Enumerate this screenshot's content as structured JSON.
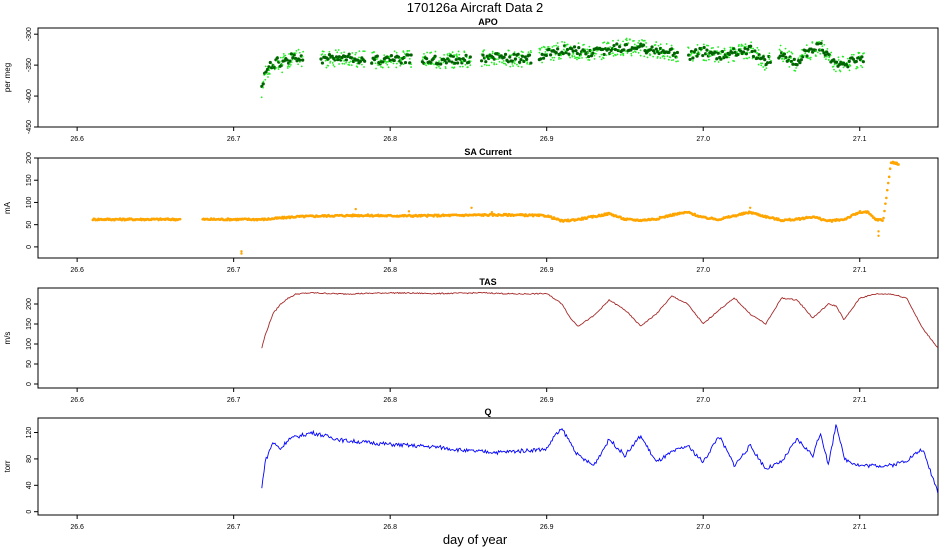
{
  "figure": {
    "title": "170126a   Aircraft Data 2",
    "xlabel": "day of year"
  },
  "chart_data": [
    {
      "type": "scatter",
      "title": "APO",
      "ylabel": "per meg",
      "xlim": [
        26.575,
        27.15
      ],
      "ylim": [
        -450,
        -290
      ],
      "xticks": [
        "26.6",
        "26.7",
        "26.8",
        "26.9",
        "27.0",
        "27.1"
      ],
      "yticks": [
        "-450",
        "-400",
        "-350",
        "-300"
      ],
      "colors": {
        "points_light": "#22ee22",
        "points_dark": "#006400"
      },
      "series": [
        {
          "x": [
            26.718,
            26.72,
            26.722,
            26.725,
            26.728,
            26.73,
            26.735,
            26.74,
            26.742,
            26.76,
            26.775,
            26.79,
            26.81,
            26.83,
            26.85,
            26.87,
            26.89,
            26.91,
            26.93,
            26.95,
            26.97,
            26.99,
            27.0,
            27.01,
            27.02,
            27.03,
            27.04,
            27.05,
            27.06,
            27.065,
            27.075,
            27.085,
            27.095,
            27.103
          ],
          "y": [
            -390,
            -360,
            -355,
            -350,
            -345,
            -350,
            -340,
            -335,
            -340,
            -340,
            -338,
            -342,
            -340,
            -342,
            -340,
            -338,
            -340,
            -325,
            -330,
            -320,
            -325,
            -335,
            -328,
            -335,
            -330,
            -325,
            -345,
            -330,
            -350,
            -330,
            -320,
            -350,
            -345,
            -342
          ]
        }
      ]
    },
    {
      "type": "scatter",
      "title": "SA Current",
      "ylabel": "mA",
      "xlim": [
        26.575,
        27.15
      ],
      "ylim": [
        -25,
        200
      ],
      "xticks": [
        "26.6",
        "26.7",
        "26.8",
        "26.9",
        "27.0",
        "27.1"
      ],
      "yticks": [
        "0",
        "50",
        "100",
        "150",
        "200"
      ],
      "colors": {
        "points": "#ffa500"
      },
      "series": [
        {
          "x": [
            26.61,
            26.63,
            26.65,
            26.665,
            26.68,
            26.7,
            26.71,
            26.72,
            26.73,
            26.74,
            26.76,
            26.78,
            26.8,
            26.82,
            26.84,
            26.86,
            26.88,
            26.89,
            26.9,
            26.91,
            26.92,
            26.93,
            26.94,
            26.95,
            26.96,
            26.97,
            26.98,
            26.99,
            27.0,
            27.01,
            27.02,
            27.03,
            27.04,
            27.05,
            27.06,
            27.07,
            27.08,
            27.09,
            27.1,
            27.105,
            27.11,
            27.115,
            27.12,
            27.125
          ],
          "y": [
            62,
            62,
            62,
            62,
            62,
            62,
            62,
            62,
            65,
            68,
            70,
            71,
            70,
            70,
            71,
            72,
            72,
            71,
            70,
            58,
            62,
            68,
            75,
            62,
            60,
            63,
            72,
            78,
            66,
            62,
            70,
            78,
            68,
            60,
            62,
            68,
            58,
            62,
            78,
            78,
            62,
            60,
            190,
            187
          ]
        }
      ]
    },
    {
      "type": "line",
      "title": "TAS",
      "ylabel": "m/s",
      "xlim": [
        26.575,
        27.15
      ],
      "ylim": [
        -10,
        240
      ],
      "xticks": [
        "26.6",
        "26.7",
        "26.8",
        "26.9",
        "27.0",
        "27.1"
      ],
      "yticks": [
        "0",
        "50",
        "100",
        "150",
        "200"
      ],
      "colors": {
        "line": "#a52a2a"
      },
      "series": [
        {
          "x": [
            26.718,
            26.72,
            26.725,
            26.73,
            26.735,
            26.74,
            26.75,
            26.77,
            26.8,
            26.83,
            26.86,
            26.88,
            26.9,
            26.91,
            26.915,
            26.92,
            26.93,
            26.94,
            26.95,
            26.96,
            26.97,
            26.98,
            26.99,
            27.0,
            27.01,
            27.02,
            27.03,
            27.04,
            27.05,
            27.06,
            27.07,
            27.08,
            27.085,
            27.09,
            27.1,
            27.11,
            27.12,
            27.13,
            27.14,
            27.15
          ],
          "y": [
            90,
            120,
            175,
            200,
            215,
            225,
            228,
            225,
            228,
            226,
            228,
            225,
            226,
            200,
            165,
            145,
            170,
            210,
            185,
            145,
            175,
            220,
            200,
            150,
            185,
            215,
            175,
            150,
            215,
            210,
            165,
            200,
            195,
            160,
            215,
            225,
            225,
            215,
            140,
            90
          ]
        }
      ]
    },
    {
      "type": "line",
      "title": "Q",
      "ylabel": "torr",
      "xlim": [
        26.575,
        27.15
      ],
      "ylim": [
        -5,
        142
      ],
      "xticks": [
        "26.6",
        "26.7",
        "26.8",
        "26.9",
        "27.0",
        "27.1"
      ],
      "yticks": [
        "0",
        "40",
        "80",
        "120"
      ],
      "colors": {
        "line": "#0000ff"
      },
      "series": [
        {
          "x": [
            26.718,
            26.72,
            26.725,
            26.73,
            26.735,
            26.75,
            26.77,
            26.8,
            26.83,
            26.85,
            26.87,
            26.9,
            26.905,
            26.91,
            26.92,
            26.93,
            26.94,
            26.95,
            26.96,
            26.97,
            26.98,
            26.99,
            27.0,
            27.01,
            27.02,
            27.03,
            27.04,
            27.05,
            27.06,
            27.07,
            27.075,
            27.08,
            27.085,
            27.09,
            27.1,
            27.12,
            27.13,
            27.14,
            27.15
          ],
          "y": [
            35,
            75,
            105,
            95,
            110,
            120,
            108,
            102,
            98,
            92,
            90,
            95,
            115,
            125,
            85,
            70,
            110,
            85,
            115,
            75,
            90,
            100,
            75,
            115,
            70,
            100,
            65,
            75,
            110,
            85,
            120,
            70,
            135,
            80,
            70,
            70,
            78,
            95,
            30
          ]
        }
      ]
    }
  ]
}
